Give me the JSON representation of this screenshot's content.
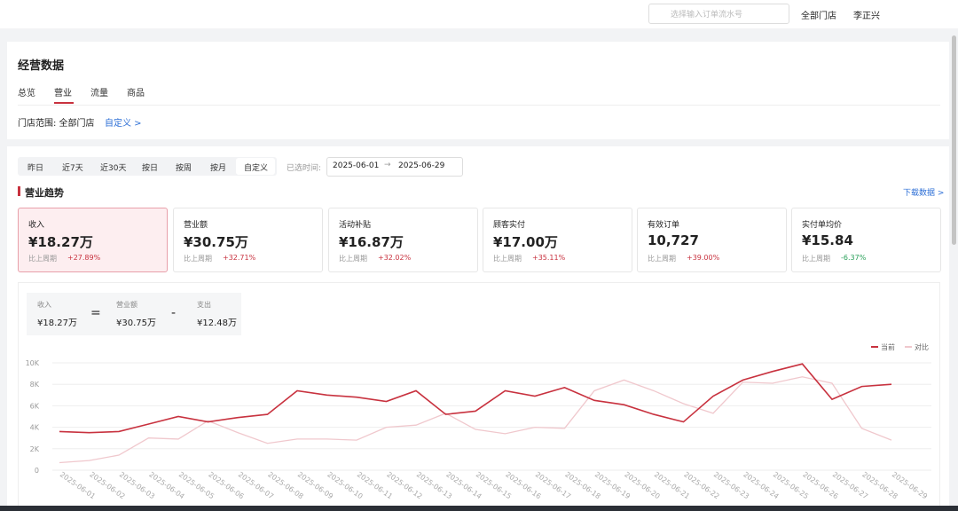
{
  "topbar": {
    "search_placeholder": "选择输入订单流水号",
    "store": "全部门店",
    "user": "李正兴"
  },
  "header": {
    "title": "经营数据",
    "tabs": [
      "总览",
      "营业",
      "流量",
      "商品"
    ]
  },
  "store_scope": {
    "label": "门店范围: 全部门店",
    "link": "自定义 >"
  },
  "filters": {
    "buttons": [
      "昨日",
      "近7天",
      "近30天",
      "按日",
      "按周",
      "按月",
      "自定义"
    ],
    "selected_label": "已选时间:",
    "start": "2025-06-01",
    "end": "2025-06-29"
  },
  "section": {
    "title": "营业趋势",
    "download": "下载数据 >"
  },
  "cards": [
    {
      "label": "收入",
      "value": "¥18.27万",
      "compare": "比上周期",
      "change": "+27.89%"
    },
    {
      "label": "营业额",
      "value": "¥30.75万",
      "compare": "比上周期",
      "change": "+32.71%"
    },
    {
      "label": "活动补贴",
      "value": "¥16.87万",
      "compare": "比上周期",
      "change": "+32.02%"
    },
    {
      "label": "顾客实付",
      "value": "¥17.00万",
      "compare": "比上周期",
      "change": "+35.11%"
    },
    {
      "label": "有效订单",
      "value": "10,727",
      "compare": "比上周期",
      "change": "+39.00%"
    },
    {
      "label": "实付单均价",
      "value": "¥15.84",
      "compare": "比上周期",
      "change": "-6.37%"
    }
  ],
  "formula": {
    "items": [
      {
        "label": "收入",
        "value": "¥18.27万"
      },
      {
        "label": "营业额",
        "value": "¥30.75万"
      },
      {
        "label": "支出",
        "value": "¥12.48万"
      }
    ],
    "ops": [
      "=",
      "-"
    ]
  },
  "chart_data": {
    "type": "line",
    "categories": [
      "2025-06-01",
      "2025-06-02",
      "2025-06-03",
      "2025-06-04",
      "2025-06-05",
      "2025-06-06",
      "2025-06-07",
      "2025-06-08",
      "2025-06-09",
      "2025-06-10",
      "2025-06-11",
      "2025-06-12",
      "2025-06-13",
      "2025-06-14",
      "2025-06-15",
      "2025-06-16",
      "2025-06-17",
      "2025-06-18",
      "2025-06-19",
      "2025-06-20",
      "2025-06-21",
      "2025-06-22",
      "2025-06-23",
      "2025-06-24",
      "2025-06-25",
      "2025-06-26",
      "2025-06-27",
      "2025-06-28",
      "2025-06-29"
    ],
    "series": [
      {
        "name": "当前",
        "color": "#c8323f",
        "values": [
          3600,
          3500,
          3600,
          4300,
          5000,
          4500,
          4900,
          5200,
          7400,
          7000,
          6800,
          6400,
          7400,
          5200,
          5500,
          7400,
          6900,
          7700,
          6500,
          6100,
          5200,
          4500,
          6900,
          8400,
          9200,
          9900,
          6600,
          7800,
          8000
        ]
      },
      {
        "name": "对比",
        "color": "#f0c8cd",
        "values": [
          700,
          900,
          1400,
          3000,
          2900,
          4600,
          3500,
          2500,
          2900,
          2900,
          2800,
          4000,
          4200,
          5300,
          3800,
          3400,
          4000,
          3900,
          7400,
          8400,
          7400,
          6200,
          5300,
          8200,
          8100,
          8700,
          8100,
          3900,
          2800
        ]
      }
    ],
    "ylim": [
      0,
      10000
    ],
    "yticks": [
      0,
      {
        "value": 2000,
        "label": "2K"
      },
      {
        "value": 4000,
        "label": "4K"
      },
      {
        "value": 6000,
        "label": "6K"
      },
      {
        "value": 8000,
        "label": "8K"
      },
      {
        "value": 10000,
        "label": "10K"
      }
    ],
    "grid": true,
    "legend": "top-right"
  }
}
